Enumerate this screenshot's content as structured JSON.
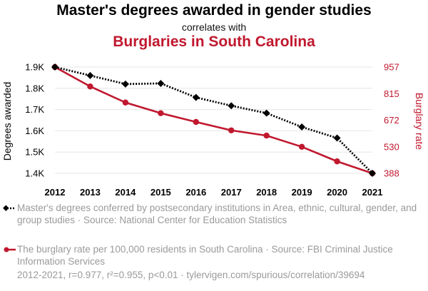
{
  "header": {
    "title": "Master's degrees awarded in gender studies",
    "connector": "correlates with",
    "subtitle": "Burglaries in South Carolina"
  },
  "legend": {
    "series1": "Master's degrees conferred by postsecondary institutions in Area, ethnic, cultural, gender, and group studies · Source: National Center for Education Statistics",
    "series2": "The burglary rate per 100,000 residents in South Carolina · Source: FBI Criminal Justice Information Services"
  },
  "footer": "2012-2021, r=0.977, r²=0.955, p<0.01 · tylervigen.com/spurious/correlation/39694",
  "colors": {
    "series1": "#000000",
    "series2": "#c0182e",
    "grid": "#e6e6e6"
  },
  "chart_data": {
    "type": "line",
    "x": [
      2012,
      2013,
      2014,
      2015,
      2016,
      2017,
      2018,
      2019,
      2020,
      2021
    ],
    "xticks": [
      "2012",
      "2013",
      "2014",
      "2015",
      "2016",
      "2017",
      "2018",
      "2019",
      "2020",
      "2021"
    ],
    "series": [
      {
        "name": "Master's degrees conferred by postsecondary institutions in Area, ethnic, cultural, gender, and group studies",
        "axis": "left",
        "marker": "diamond",
        "linestyle": "dotted",
        "color": "#000000",
        "values": [
          1.9,
          1.86,
          1.82,
          1.823,
          1.757,
          1.718,
          1.683,
          1.618,
          1.566,
          1.4
        ]
      },
      {
        "name": "The burglary rate per 100,000 residents in South Carolina",
        "axis": "right",
        "marker": "circle",
        "linestyle": "solid",
        "color": "#c0182e",
        "values": [
          957,
          853,
          767,
          710,
          663,
          618,
          590,
          530,
          452,
          388
        ]
      }
    ],
    "ylabel_left": "Degrees awarded",
    "ylabel_right": "Burglary rate",
    "ylim_left": [
      1.4,
      1.9
    ],
    "ylim_right": [
      388,
      957
    ],
    "yticks_left": [
      "1.4K",
      "1.5K",
      "1.6K",
      "1.7K",
      "1.8K",
      "1.9K"
    ],
    "yticks_right": [
      "388",
      "530",
      "672",
      "815",
      "957"
    ],
    "grid": true
  }
}
